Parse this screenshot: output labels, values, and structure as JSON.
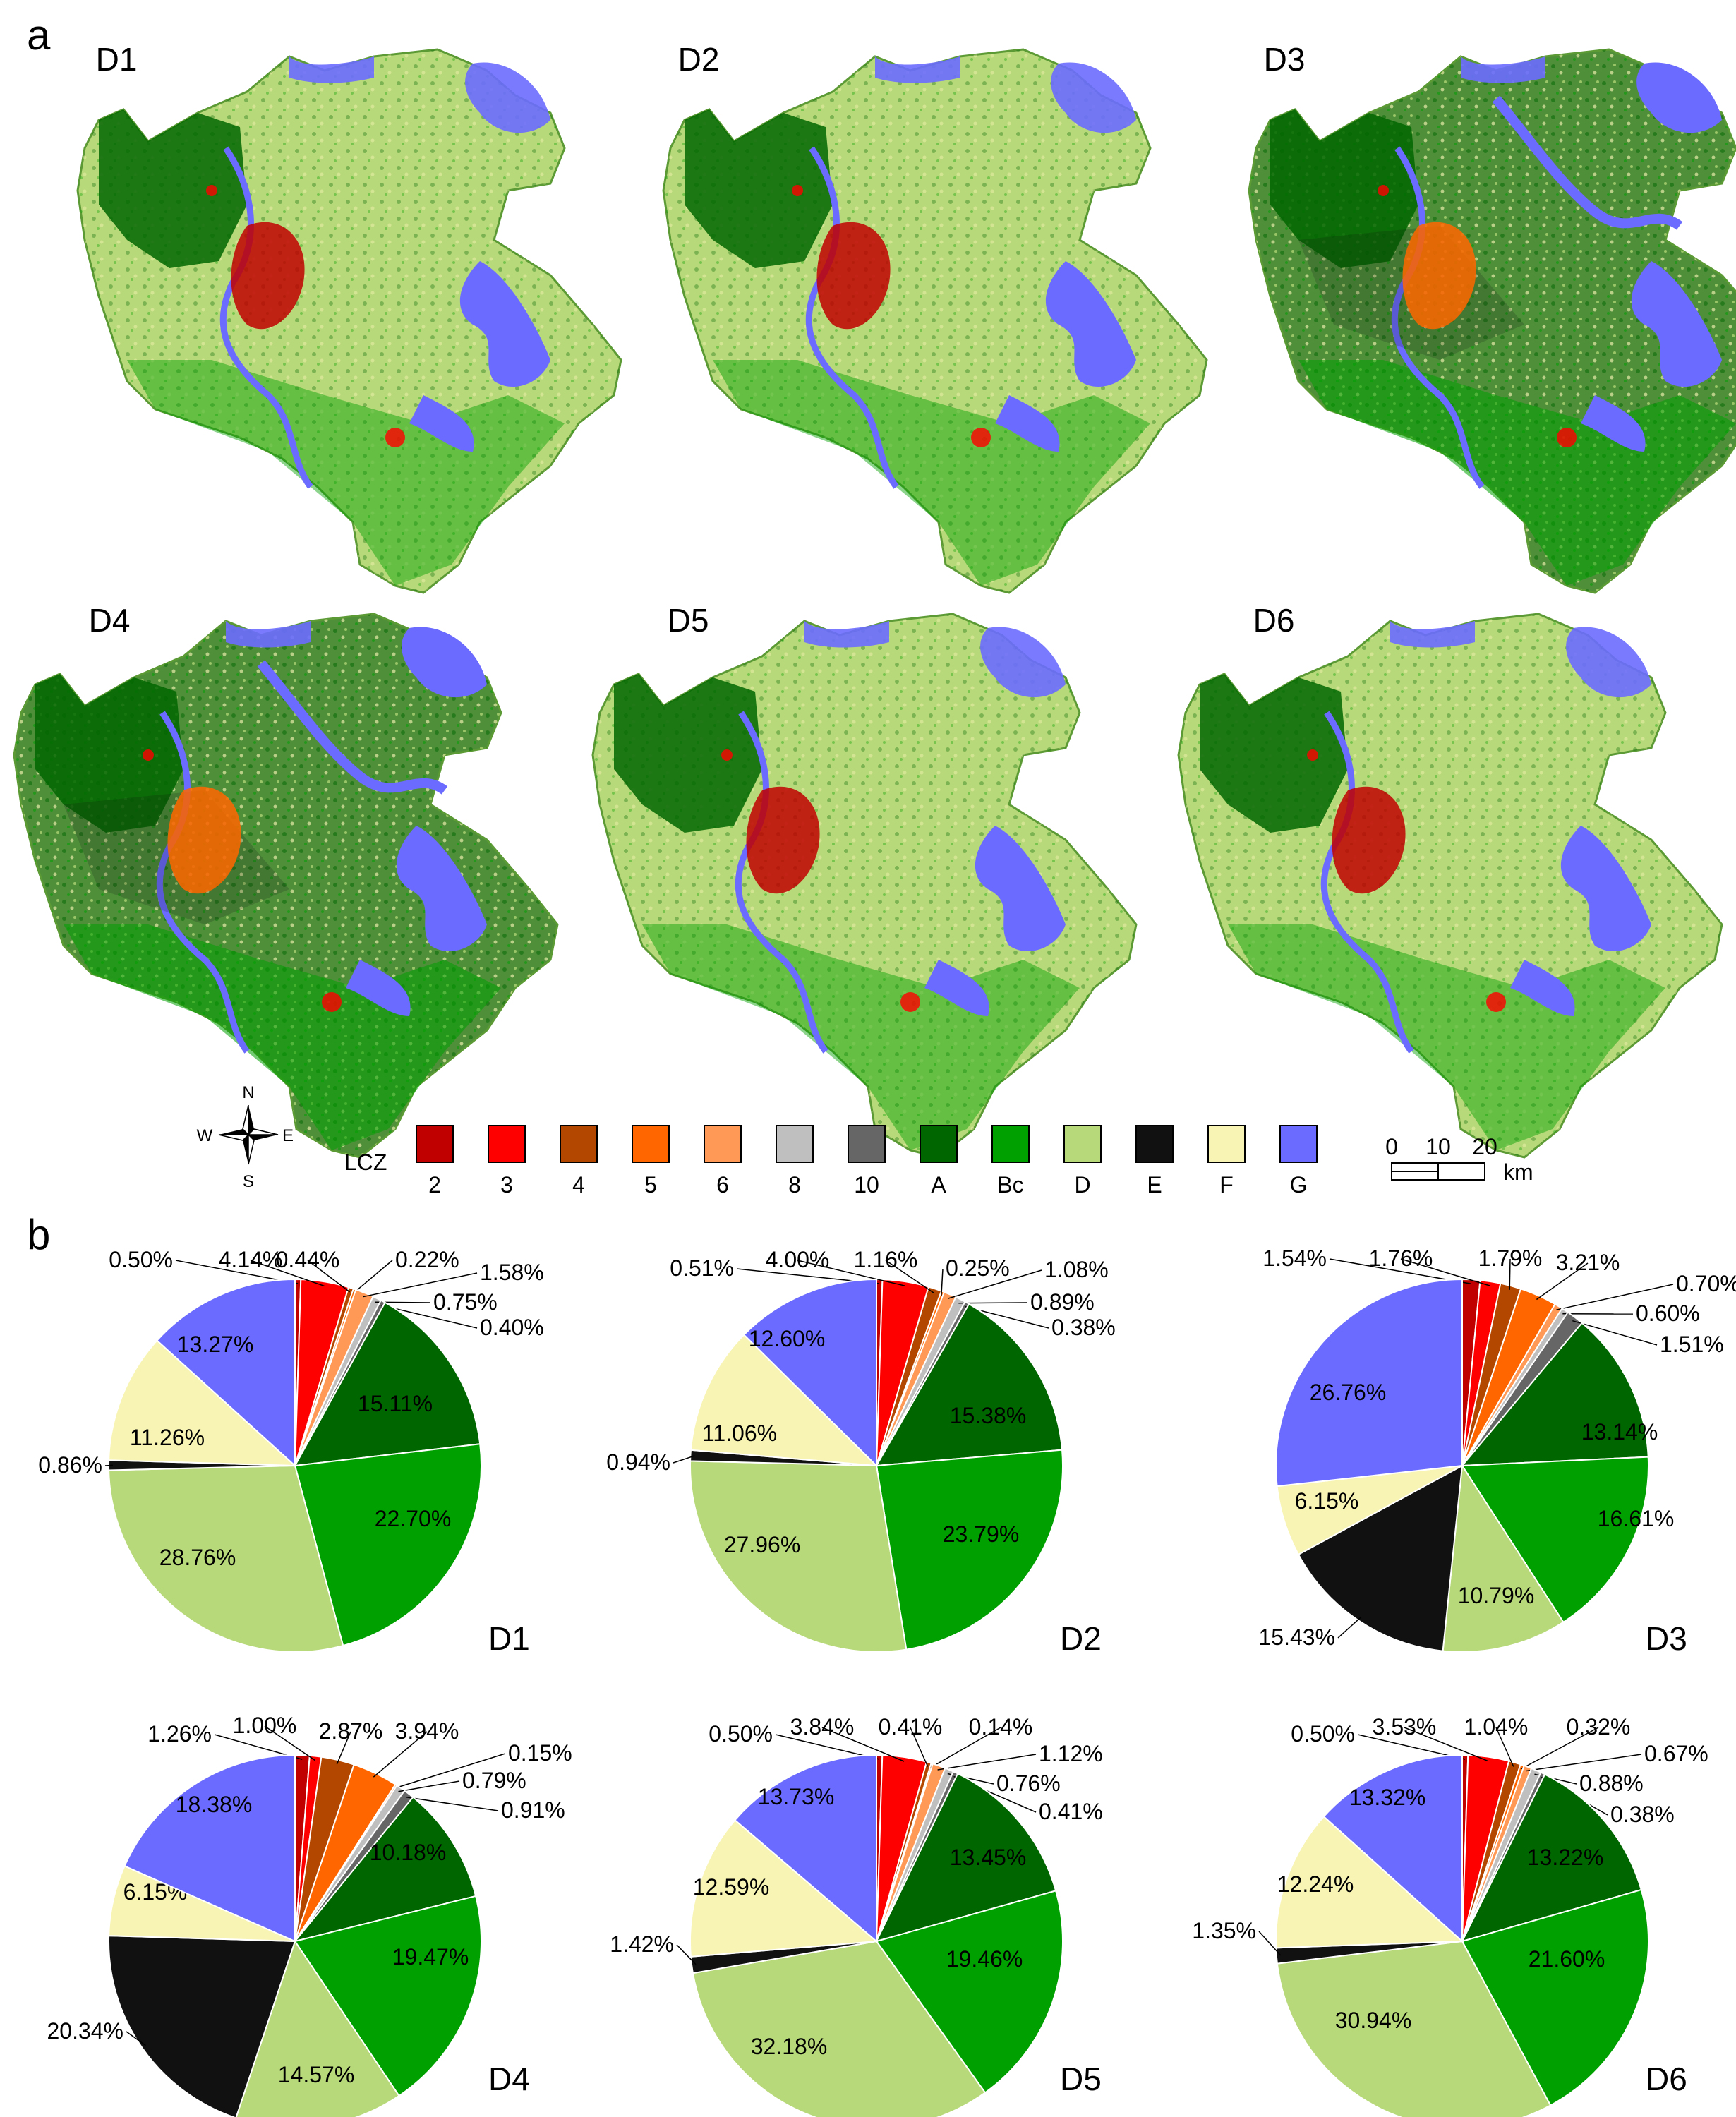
{
  "panel_a_label": "a",
  "panel_b_label": "b",
  "maps": [
    "D1",
    "D2",
    "D3",
    "D4",
    "D5",
    "D6"
  ],
  "legend": {
    "title": "LCZ",
    "classes": [
      {
        "label": "2",
        "color": "#c00000"
      },
      {
        "label": "3",
        "color": "#ff0000"
      },
      {
        "label": "4",
        "color": "#b34700"
      },
      {
        "label": "5",
        "color": "#ff6600"
      },
      {
        "label": "6",
        "color": "#ff9955"
      },
      {
        "label": "8",
        "color": "#bfbfbf"
      },
      {
        "label": "10",
        "color": "#666666"
      },
      {
        "label": "A",
        "color": "#006600"
      },
      {
        "label": "Bc",
        "color": "#00a000"
      },
      {
        "label": "D",
        "color": "#b8d97a"
      },
      {
        "label": "E",
        "color": "#111111"
      },
      {
        "label": "F",
        "color": "#f8f4b4"
      },
      {
        "label": "G",
        "color": "#6b6bff"
      }
    ]
  },
  "compass": {
    "n": "N",
    "s": "S",
    "e": "E",
    "w": "W"
  },
  "scale_bar": {
    "ticks": [
      "0",
      "10",
      "20"
    ],
    "unit": "km"
  },
  "chart_data": [
    {
      "type": "pie",
      "title": "D1",
      "categories": [
        "2",
        "3",
        "4",
        "5",
        "6",
        "8",
        "10",
        "A",
        "Bc",
        "D",
        "E",
        "F",
        "G"
      ],
      "values": [
        0.5,
        4.14,
        0.44,
        0.22,
        1.58,
        0.75,
        0.4,
        15.11,
        22.7,
        28.76,
        0.86,
        11.26,
        13.27
      ],
      "labels": [
        "0.50%",
        "4.14%",
        "0.44%",
        "0.22%",
        "1.58%",
        "0.75%",
        "0.40%",
        "15.11%",
        "22.70%",
        "28.76%",
        "0.86%",
        "11.26%",
        "13.27%"
      ]
    },
    {
      "type": "pie",
      "title": "D2",
      "categories": [
        "2",
        "3",
        "4",
        "5",
        "6",
        "8",
        "10",
        "A",
        "Bc",
        "D",
        "E",
        "F",
        "G"
      ],
      "values": [
        0.51,
        4.0,
        1.16,
        0.25,
        1.08,
        0.89,
        0.38,
        15.38,
        23.79,
        27.96,
        0.94,
        11.06,
        12.6
      ],
      "labels": [
        "0.51%",
        "4.00%",
        "1.16%",
        "0.25%",
        "1.08%",
        "0.89%",
        "0.38%",
        "15.38%",
        "23.79%",
        "27.96%",
        "0.94%",
        "11.06%",
        "12.60%"
      ]
    },
    {
      "type": "pie",
      "title": "D3",
      "categories": [
        "2",
        "3",
        "4",
        "5",
        "6",
        "8",
        "10",
        "A",
        "Bc",
        "D",
        "E",
        "F",
        "G"
      ],
      "values": [
        1.54,
        1.76,
        1.79,
        3.21,
        0.7,
        0.6,
        1.51,
        13.14,
        16.61,
        10.79,
        15.43,
        6.15,
        26.76
      ],
      "labels": [
        "1.54%",
        "1.76%",
        "1.79%",
        "3.21%",
        "0.70%",
        "0.60%",
        "1.51%",
        "13.14%",
        "16.61%",
        "10.79%",
        "15.43%",
        "6.15%",
        "26.76%"
      ]
    },
    {
      "type": "pie",
      "title": "D4",
      "categories": [
        "2",
        "3",
        "4",
        "5",
        "6",
        "8",
        "10",
        "A",
        "Bc",
        "D",
        "E",
        "F",
        "G"
      ],
      "values": [
        1.26,
        1.0,
        2.87,
        3.94,
        0.15,
        0.79,
        0.91,
        10.18,
        19.47,
        14.57,
        20.34,
        6.15,
        18.38
      ],
      "labels": [
        "1.26%",
        "1.00%",
        "2.87%",
        "3.94%",
        "0.15%",
        "0.79%",
        "0.91%",
        "10.18%",
        "19.47%",
        "14.57%",
        "20.34%",
        "6.15%",
        "18.38%"
      ]
    },
    {
      "type": "pie",
      "title": "D5",
      "categories": [
        "2",
        "3",
        "4",
        "5",
        "6",
        "8",
        "10",
        "A",
        "Bc",
        "D",
        "E",
        "F",
        "G"
      ],
      "values": [
        0.5,
        3.84,
        0.41,
        0.14,
        1.12,
        0.76,
        0.41,
        13.45,
        19.46,
        32.18,
        1.42,
        12.59,
        13.73
      ],
      "labels": [
        "0.50%",
        "3.84%",
        "0.41%",
        "0.14%",
        "1.12%",
        "0.76%",
        "0.41%",
        "13.45%",
        "19.46%",
        "32.18%",
        "1.42%",
        "12.59%",
        "13.73%"
      ]
    },
    {
      "type": "pie",
      "title": "D6",
      "categories": [
        "2",
        "3",
        "4",
        "5",
        "6",
        "8",
        "10",
        "A",
        "Bc",
        "D",
        "E",
        "F",
        "G"
      ],
      "values": [
        0.5,
        3.53,
        1.04,
        0.32,
        0.67,
        0.88,
        0.38,
        13.22,
        21.6,
        30.94,
        1.35,
        12.24,
        13.32
      ],
      "labels": [
        "0.50%",
        "3.53%",
        "1.04%",
        "0.32%",
        "0.67%",
        "0.88%",
        "0.38%",
        "13.22%",
        "21.60%",
        "30.94%",
        "1.35%",
        "12.24%",
        "13.32%"
      ]
    }
  ]
}
